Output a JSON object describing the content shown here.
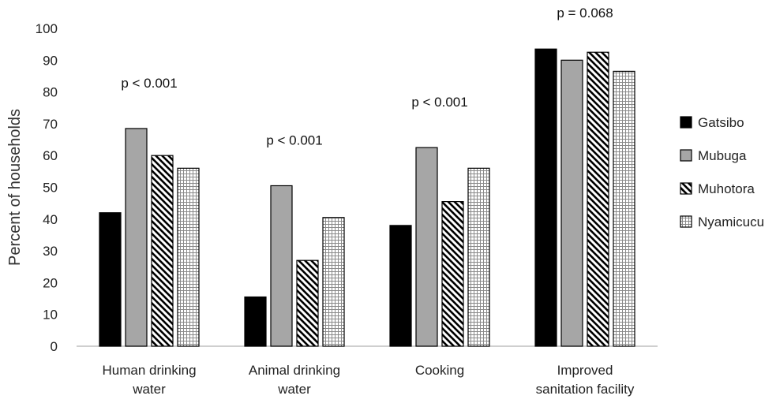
{
  "chart_data": {
    "type": "bar",
    "title": "",
    "xlabel": "",
    "ylabel": "Percent of households",
    "ylim": [
      0,
      100
    ],
    "yticks": [
      0,
      10,
      20,
      30,
      40,
      50,
      60,
      70,
      80,
      90,
      100
    ],
    "grid": false,
    "legend_position": "right",
    "categories": [
      [
        "Human drinking",
        "water"
      ],
      [
        "Animal drinking",
        "water"
      ],
      [
        "Cooking"
      ],
      [
        "Improved",
        "sanitation facility"
      ]
    ],
    "annotations": [
      "p < 0.001",
      "p < 0.001",
      "p < 0.001",
      "p = 0.068"
    ],
    "series": [
      {
        "name": "Gatsibo",
        "fill": "solid-black",
        "color": "#000000",
        "values": [
          42,
          15.5,
          38,
          93.5
        ]
      },
      {
        "name": "Mubuga",
        "fill": "solid-gray",
        "color": "#a6a6a6",
        "values": [
          68.5,
          50.5,
          62.5,
          90
        ]
      },
      {
        "name": "Muhotora",
        "fill": "diagonal-hatch",
        "color": "#000000",
        "values": [
          60,
          27,
          45.5,
          92.5
        ]
      },
      {
        "name": "Nyamicucu",
        "fill": "dotted-grid",
        "color": "#555555",
        "values": [
          56,
          40.5,
          56,
          86.5
        ]
      }
    ]
  }
}
